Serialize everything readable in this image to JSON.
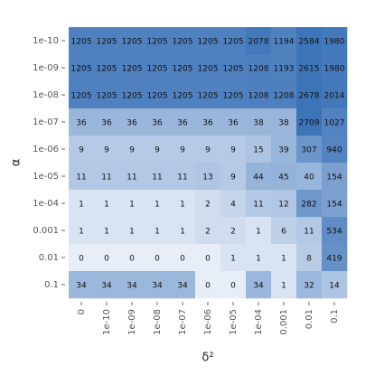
{
  "chart_data": {
    "type": "heatmap",
    "x_label": "δ²",
    "y_label": "α",
    "x_categories": [
      "0",
      "1e-10",
      "1e-09",
      "1e-08",
      "1e-07",
      "1e-06",
      "1e-05",
      "1e-04",
      "0.001",
      "0.01",
      "0.1"
    ],
    "y_categories": [
      "1e-10",
      "1e-09",
      "1e-08",
      "1e-07",
      "1e-06",
      "1e-05",
      "1e-04",
      "0.001",
      "0.01",
      "0.1"
    ],
    "values": [
      [
        1205,
        1205,
        1205,
        1205,
        1205,
        1205,
        1205,
        2078,
        1194,
        2584,
        1980
      ],
      [
        1205,
        1205,
        1205,
        1205,
        1205,
        1205,
        1205,
        1208,
        1193,
        2615,
        1980
      ],
      [
        1205,
        1205,
        1205,
        1205,
        1205,
        1205,
        1205,
        1208,
        1208,
        2678,
        2014
      ],
      [
        36,
        36,
        36,
        36,
        36,
        36,
        36,
        38,
        38,
        2709,
        1027
      ],
      [
        9,
        9,
        9,
        9,
        9,
        9,
        9,
        15,
        39,
        307,
        940
      ],
      [
        11,
        11,
        11,
        11,
        11,
        13,
        9,
        44,
        45,
        40,
        154
      ],
      [
        1,
        1,
        1,
        1,
        1,
        2,
        4,
        11,
        12,
        282,
        154
      ],
      [
        1,
        1,
        1,
        1,
        1,
        2,
        2,
        1,
        6,
        11,
        534
      ],
      [
        0,
        0,
        0,
        0,
        0,
        0,
        1,
        1,
        1,
        8,
        419
      ],
      [
        34,
        34,
        34,
        34,
        34,
        0,
        0,
        34,
        1,
        32,
        14
      ]
    ],
    "color_low": "#e8eef8",
    "color_high": "#3d74b8",
    "color_scale": "log"
  }
}
